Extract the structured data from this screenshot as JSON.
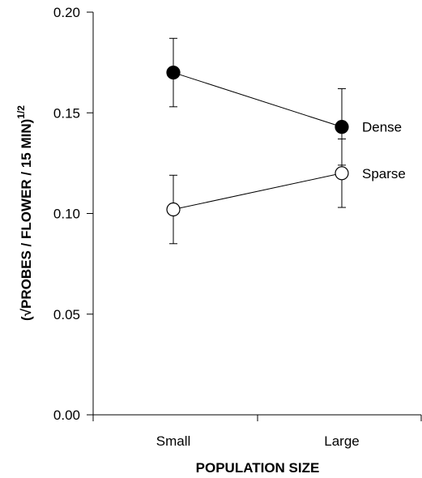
{
  "chart_data": {
    "type": "line",
    "categories": [
      "Small",
      "Large"
    ],
    "series": [
      {
        "name": "Dense",
        "values": [
          0.17,
          0.143
        ],
        "errors": [
          0.017,
          0.019
        ],
        "marker": "filled-circle",
        "color": "#000000"
      },
      {
        "name": "Sparse",
        "values": [
          0.102,
          0.12
        ],
        "errors": [
          0.017,
          0.017
        ],
        "marker": "open-circle",
        "color": "#000000"
      }
    ],
    "xlabel": "POPULATION SIZE",
    "ylabel": {
      "main": "(√PROBES / FLOWER / 15 MIN)",
      "superscript": "1/2"
    },
    "ylim": [
      0.0,
      0.2
    ],
    "yticks": [
      0.0,
      0.05,
      0.1,
      0.15,
      0.2
    ],
    "ytick_labels": [
      "0.00",
      "0.05",
      "0.10",
      "0.15",
      "0.20"
    ],
    "grid": false,
    "legend": "series labels placed at right of last points"
  }
}
